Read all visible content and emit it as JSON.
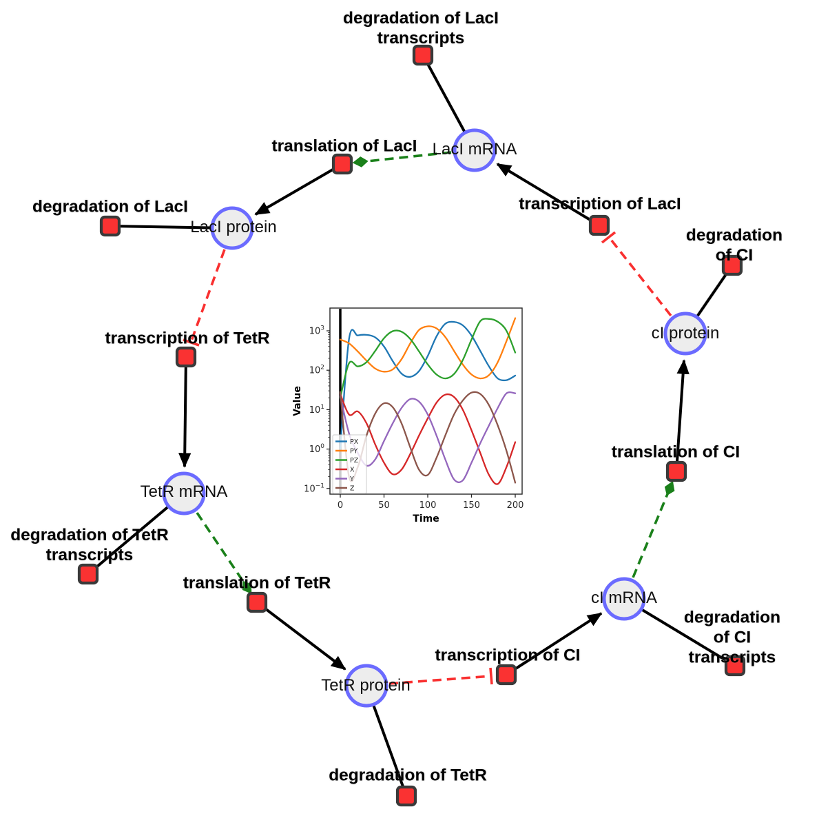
{
  "figure": {
    "background_color": "#ffffff",
    "description": "Repressilator reaction network with inset simulation plot"
  },
  "network": {
    "species_nodes": [
      {
        "label": "LacI mRNA"
      },
      {
        "label": "LacI protein"
      },
      {
        "label": "TetR mRNA"
      },
      {
        "label": "TetR protein"
      },
      {
        "label": "cI mRNA"
      },
      {
        "label": "cI protein"
      }
    ],
    "reaction_nodes": [
      {
        "label": "degradation of LacI\ntranscripts"
      },
      {
        "label": "translation of LacI"
      },
      {
        "label": "transcription of LacI"
      },
      {
        "label": "degradation of LacI"
      },
      {
        "label": "transcription of TetR"
      },
      {
        "label": "degradation of CI"
      },
      {
        "label": "translation of CI"
      },
      {
        "label": "degradation of TetR\ntranscripts"
      },
      {
        "label": "translation of TetR"
      },
      {
        "label": "transcription of CI"
      },
      {
        "label": "degradation of CI\ntranscripts"
      },
      {
        "label": "degradation of TetR"
      }
    ],
    "edges": [
      {
        "from": "LacI mRNA",
        "to": "degradation of LacI transcripts",
        "type": "consumption"
      },
      {
        "from": "LacI protein",
        "to": "degradation of LacI",
        "type": "consumption"
      },
      {
        "from": "TetR mRNA",
        "to": "degradation of TetR transcripts",
        "type": "consumption"
      },
      {
        "from": "TetR protein",
        "to": "degradation of TetR",
        "type": "consumption"
      },
      {
        "from": "cI mRNA",
        "to": "degradation of CI transcripts",
        "type": "consumption"
      },
      {
        "from": "cI protein",
        "to": "degradation of CI",
        "type": "consumption"
      },
      {
        "from": "transcription of LacI",
        "to": "LacI mRNA",
        "type": "production"
      },
      {
        "from": "translation of LacI",
        "to": "LacI protein",
        "type": "production"
      },
      {
        "from": "transcription of TetR",
        "to": "TetR mRNA",
        "type": "production"
      },
      {
        "from": "translation of TetR",
        "to": "TetR protein",
        "type": "production"
      },
      {
        "from": "transcription of CI",
        "to": "cI mRNA",
        "type": "production"
      },
      {
        "from": "translation of CI",
        "to": "cI protein",
        "type": "production"
      },
      {
        "from": "LacI mRNA",
        "to": "translation of LacI",
        "type": "modifier"
      },
      {
        "from": "TetR mRNA",
        "to": "translation of TetR",
        "type": "modifier"
      },
      {
        "from": "cI mRNA",
        "to": "translation of CI",
        "type": "modifier"
      },
      {
        "from": "LacI protein",
        "to": "transcription of TetR",
        "type": "inhibition"
      },
      {
        "from": "TetR protein",
        "to": "transcription of CI",
        "type": "inhibition"
      },
      {
        "from": "cI protein",
        "to": "transcription of LacI",
        "type": "inhibition"
      }
    ],
    "colors": {
      "species_fill": "#ededed",
      "species_border": "#6b6bff",
      "reaction_fill": "#fa3232",
      "reaction_border": "#3a3a3a",
      "consumption_production_edge": "#000000",
      "modifier_edge": "#1a801a",
      "inhibition_edge": "#f93030"
    }
  },
  "chart_data": {
    "type": "line",
    "title": "",
    "xlabel": "Time",
    "ylabel": "Value",
    "y_scale": "log",
    "x_ticks": [
      0,
      50,
      100,
      150,
      200
    ],
    "y_tick_exponents": [
      -1,
      0,
      1,
      2,
      3
    ],
    "xlim": [
      -11,
      208
    ],
    "ylim_log10": [
      -1.14,
      3.58
    ],
    "grid": false,
    "legend_position": "lower left",
    "annotations": [
      {
        "type": "vline",
        "x": 0,
        "color": "#000000"
      }
    ],
    "x": [
      0,
      10,
      20,
      30,
      40,
      50,
      60,
      70,
      80,
      90,
      100,
      110,
      120,
      130,
      140,
      150,
      160,
      170,
      180,
      190,
      200
    ],
    "series": [
      {
        "name": "PX",
        "color": "#1f77b4",
        "values": [
          1,
          620,
          760,
          790,
          680,
          400,
          170,
          82,
          68,
          95,
          230,
          720,
          1500,
          1680,
          1380,
          760,
          310,
          125,
          62,
          56,
          73
        ]
      },
      {
        "name": "PY",
        "color": "#ff7f0e",
        "values": [
          600,
          480,
          300,
          175,
          110,
          92,
          105,
          190,
          480,
          1050,
          1300,
          1150,
          700,
          310,
          140,
          78,
          62,
          75,
          160,
          550,
          2100
        ]
      },
      {
        "name": "PZ",
        "color": "#2ca02c",
        "values": [
          20,
          150,
          125,
          160,
          310,
          650,
          980,
          950,
          620,
          300,
          140,
          78,
          62,
          80,
          180,
          600,
          1750,
          2000,
          1700,
          1000,
          280
        ]
      },
      {
        "name": "X",
        "color": "#d62728",
        "values": [
          25,
          7.5,
          9,
          4.5,
          1.3,
          0.45,
          0.23,
          0.3,
          0.75,
          2.2,
          6,
          15,
          24,
          21,
          10,
          3,
          0.8,
          0.22,
          0.13,
          0.35,
          1.5
        ]
      },
      {
        "name": "Y",
        "color": "#9467bd",
        "values": [
          22,
          2.5,
          0.8,
          0.38,
          0.55,
          1.6,
          4.5,
          11,
          18.5,
          16,
          7.5,
          2.2,
          0.55,
          0.17,
          0.16,
          0.45,
          1.4,
          4,
          11,
          26,
          26
        ]
      },
      {
        "name": "Z",
        "color": "#8c564b",
        "values": [
          28,
          0.2,
          0.35,
          2.2,
          8,
          14.5,
          11.5,
          4.5,
          1.1,
          0.3,
          0.22,
          0.6,
          2.2,
          7.5,
          17,
          27,
          25,
          13,
          4,
          0.9,
          0.14
        ]
      }
    ]
  }
}
